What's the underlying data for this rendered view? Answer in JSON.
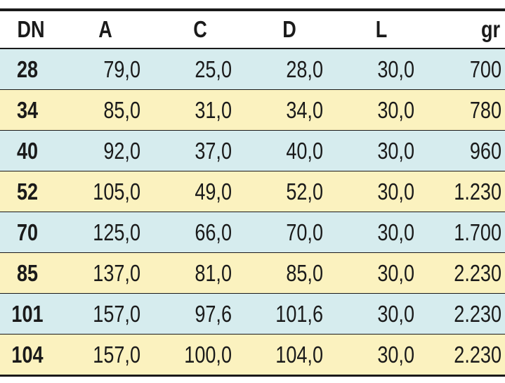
{
  "table": {
    "headers": {
      "dn": "DN",
      "a": "A",
      "c": "C",
      "d": "D",
      "l": "L",
      "gr": "gr"
    },
    "rows": [
      {
        "dn": "28",
        "a": "79,0",
        "c": "25,0",
        "d": "28,0",
        "l": "30,0",
        "gr": "700"
      },
      {
        "dn": "34",
        "a": "85,0",
        "c": "31,0",
        "d": "34,0",
        "l": "30,0",
        "gr": "780"
      },
      {
        "dn": "40",
        "a": "92,0",
        "c": "37,0",
        "d": "40,0",
        "l": "30,0",
        "gr": "960"
      },
      {
        "dn": "52",
        "a": "105,0",
        "c": "49,0",
        "d": "52,0",
        "l": "30,0",
        "gr": "1.230"
      },
      {
        "dn": "70",
        "a": "125,0",
        "c": "66,0",
        "d": "70,0",
        "l": "30,0",
        "gr": "1.700"
      },
      {
        "dn": "85",
        "a": "137,0",
        "c": "81,0",
        "d": "85,0",
        "l": "30,0",
        "gr": "2.230"
      },
      {
        "dn": "101",
        "a": "157,0",
        "c": "97,6",
        "d": "101,6",
        "l": "30,0",
        "gr": "2.230"
      },
      {
        "dn": "104",
        "a": "157,0",
        "c": "100,0",
        "d": "104,0",
        "l": "30,0",
        "gr": "2.230"
      }
    ]
  },
  "colors": {
    "row_teal": "#d6ecee",
    "row_cream": "#fbf2bf",
    "rule": "#1a1a1a"
  }
}
